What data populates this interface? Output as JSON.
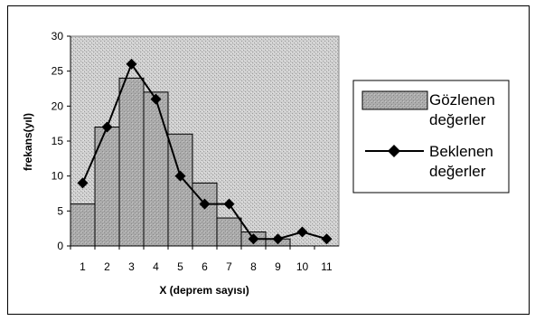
{
  "chart_data": {
    "type": "bar",
    "xlabel": "X (deprem sayısı)",
    "ylabel": "frekans(yıl)",
    "ylim": [
      0,
      30
    ],
    "yticks": [
      0,
      5,
      10,
      15,
      20,
      25,
      30
    ],
    "categories": [
      "1",
      "2",
      "3",
      "4",
      "5",
      "6",
      "7",
      "8",
      "9",
      "10",
      "11"
    ],
    "series": [
      {
        "name": "Gözlenen değerler",
        "kind": "bar",
        "color": "#b3b3b3",
        "values": [
          6,
          17,
          24,
          22,
          16,
          9,
          4,
          2,
          1,
          0,
          0
        ]
      },
      {
        "name": "Beklenen değerler",
        "kind": "line",
        "marker": "diamond",
        "color": "#000000",
        "values": [
          9,
          17,
          26,
          21,
          10,
          6,
          6,
          1,
          1,
          2,
          1
        ]
      }
    ],
    "grid": false,
    "legend_position": "right",
    "plot_background": "#c8c8c8"
  },
  "legend": {
    "observed": [
      "Gözlenen",
      "değerler"
    ],
    "expected": [
      "Beklenen",
      "değerler"
    ]
  }
}
